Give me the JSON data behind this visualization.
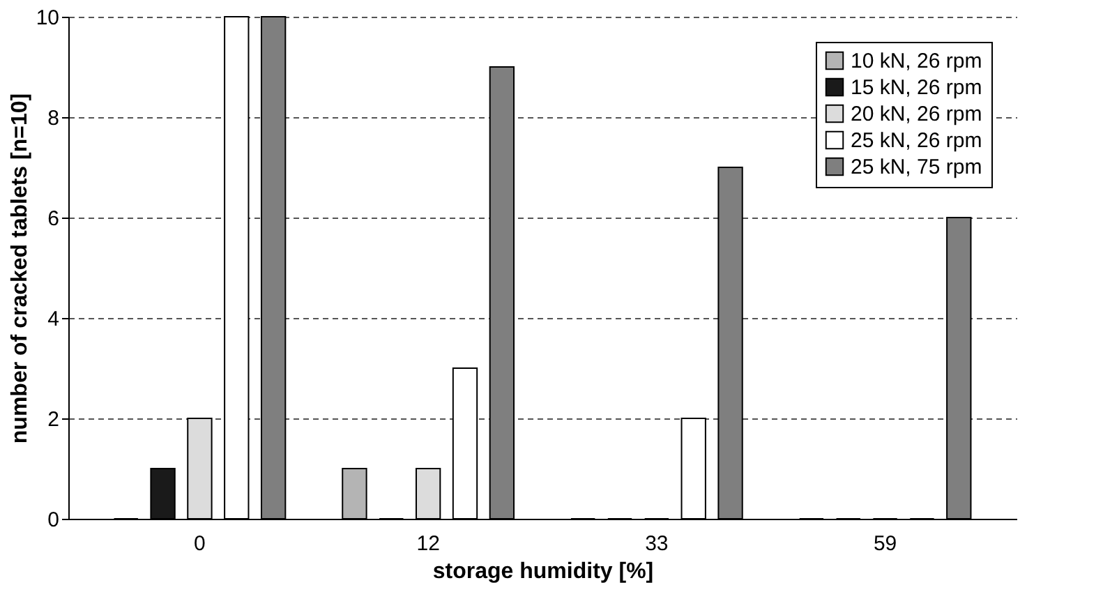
{
  "chart_data": {
    "type": "bar",
    "xlabel": "storage humidity [%]",
    "ylabel": "number of cracked tablets [n=10]",
    "categories": [
      "0",
      "12",
      "33",
      "59"
    ],
    "series": [
      {
        "name": "10 kN, 26 rpm",
        "color": "#b4b4b4",
        "values": [
          0,
          1,
          0,
          0
        ]
      },
      {
        "name": "15 kN, 26 rpm",
        "color": "#1a1a1a",
        "values": [
          1,
          0,
          0,
          0
        ]
      },
      {
        "name": "20 kN, 26 rpm",
        "color": "#dcdcdc",
        "values": [
          2,
          1,
          0,
          0
        ]
      },
      {
        "name": "25 kN, 26 rpm",
        "color": "#ffffff",
        "values": [
          10,
          3,
          2,
          0
        ]
      },
      {
        "name": "25 kN, 75 rpm",
        "color": "#7f7f7f",
        "values": [
          10,
          9,
          7,
          6
        ]
      }
    ],
    "ylim": [
      0,
      10
    ],
    "yticks": [
      0,
      2,
      4,
      6,
      8,
      10
    ],
    "grid": "y",
    "legend": "top right"
  }
}
